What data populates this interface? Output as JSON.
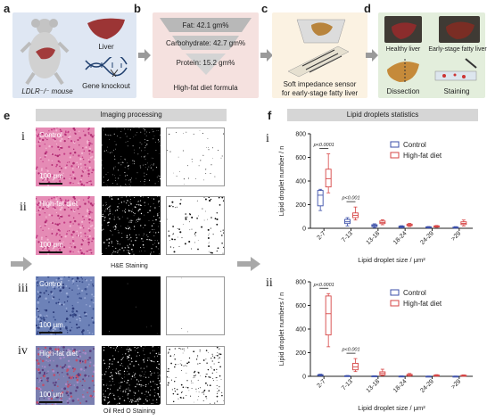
{
  "top": {
    "panels": [
      "a",
      "b",
      "c",
      "d"
    ],
    "a": {
      "mouse_label": "LDLR⁻/⁻ mouse",
      "liver": "Liver",
      "knockout": "Gene knockout"
    },
    "b": {
      "fat": "Fat: 42.1 gm%",
      "carb": "Carbohydrate: 42.7 gm%",
      "protein": "Protein: 15.2 gm%",
      "caption": "High-fat diet formula"
    },
    "c": {
      "caption_line1": "Soft impedance sensor",
      "caption_line2": "for early-stage fatty liver"
    },
    "d": {
      "healthy": "Healthy liver",
      "fatty": "Early-stage fatty liver",
      "dissection": "Dissection",
      "staining": "Staining"
    }
  },
  "e": {
    "label": "e",
    "header": "Imaging processing",
    "rows": [
      {
        "roman": "i",
        "text": "Control",
        "scale": "100 μm"
      },
      {
        "roman": "ii",
        "text": "High-fat diet",
        "scale": "100 μm"
      },
      {
        "roman": "iii",
        "text": "Control",
        "scale": "100 μm"
      },
      {
        "roman": "iv",
        "text": "High-fat diet",
        "scale": "100 μm"
      }
    ],
    "he_caption": "H&E Staining",
    "oro_caption": "Oil Red O Staining"
  },
  "f": {
    "label": "f",
    "header": "Lipid droplets statistics",
    "colors": {
      "control": "#3b4fa8",
      "hfd": "#d64545"
    }
  },
  "chart_data": [
    {
      "type": "box",
      "panel": "i",
      "categories": [
        "2-7",
        "7-13",
        "13-18",
        "18-24",
        "24-29",
        ">29"
      ],
      "xlabel": "Lipid droplet size / μm²",
      "ylabel": "Lipid droplet number / n",
      "ylim": [
        0,
        800
      ],
      "yticks": [
        0,
        200,
        400,
        600,
        800
      ],
      "legend": [
        "Control",
        "High-fat diet"
      ],
      "annotations": [
        {
          "category": "2-7",
          "text": "p<0.0001"
        },
        {
          "category": "7-13",
          "text": "p<0.001"
        }
      ],
      "series": [
        {
          "name": "Control",
          "boxes": [
            {
              "min": 150,
              "q1": 190,
              "median": 280,
              "q3": 320,
              "max": 330
            },
            {
              "min": 20,
              "q1": 40,
              "median": 55,
              "q3": 75,
              "max": 90
            },
            {
              "min": 5,
              "q1": 15,
              "median": 22,
              "q3": 30,
              "max": 38
            },
            {
              "min": 3,
              "q1": 8,
              "median": 12,
              "q3": 18,
              "max": 22
            },
            {
              "min": 2,
              "q1": 5,
              "median": 8,
              "q3": 12,
              "max": 15
            },
            {
              "min": 1,
              "q1": 3,
              "median": 6,
              "q3": 10,
              "max": 14
            }
          ]
        },
        {
          "name": "High-fat diet",
          "boxes": [
            {
              "min": 300,
              "q1": 350,
              "median": 420,
              "q3": 500,
              "max": 630
            },
            {
              "min": 70,
              "q1": 90,
              "median": 110,
              "q3": 130,
              "max": 180
            },
            {
              "min": 30,
              "q1": 40,
              "median": 50,
              "q3": 62,
              "max": 72
            },
            {
              "min": 15,
              "q1": 22,
              "median": 28,
              "q3": 35,
              "max": 42
            },
            {
              "min": 8,
              "q1": 12,
              "median": 16,
              "q3": 20,
              "max": 24
            },
            {
              "min": 20,
              "q1": 32,
              "median": 42,
              "q3": 55,
              "max": 70
            }
          ]
        }
      ]
    },
    {
      "type": "box",
      "panel": "ii",
      "categories": [
        "2-7",
        "7-13",
        "13-18",
        "18-24",
        "24-29",
        ">29"
      ],
      "xlabel": "Lipid droplet size / μm²",
      "ylabel": "Lipid droplet numbers / n",
      "ylim": [
        0,
        800
      ],
      "yticks": [
        0,
        200,
        400,
        600,
        800
      ],
      "legend": [
        "Control",
        "High-fat diet"
      ],
      "annotations": [
        {
          "category": "2-7",
          "text": "p<0.0001"
        },
        {
          "category": "7-13",
          "text": "p<0.001"
        }
      ],
      "series": [
        {
          "name": "Control",
          "boxes": [
            {
              "min": 3,
              "q1": 6,
              "median": 10,
              "q3": 14,
              "max": 18
            },
            {
              "min": 1,
              "q1": 2,
              "median": 3,
              "q3": 5,
              "max": 7
            },
            {
              "min": 0,
              "q1": 1,
              "median": 2,
              "q3": 3,
              "max": 4
            },
            {
              "min": 0,
              "q1": 0,
              "median": 1,
              "q3": 2,
              "max": 3
            },
            {
              "min": 0,
              "q1": 0,
              "median": 1,
              "q3": 1,
              "max": 2
            },
            {
              "min": 0,
              "q1": 0,
              "median": 1,
              "q3": 1,
              "max": 2
            }
          ]
        },
        {
          "name": "High-fat diet",
          "boxes": [
            {
              "min": 250,
              "q1": 350,
              "median": 530,
              "q3": 680,
              "max": 700
            },
            {
              "min": 40,
              "q1": 55,
              "median": 80,
              "q3": 110,
              "max": 150
            },
            {
              "min": 5,
              "q1": 12,
              "median": 25,
              "q3": 38,
              "max": 60
            },
            {
              "min": 2,
              "q1": 6,
              "median": 10,
              "q3": 16,
              "max": 24
            },
            {
              "min": 1,
              "q1": 3,
              "median": 6,
              "q3": 10,
              "max": 14
            },
            {
              "min": 1,
              "q1": 3,
              "median": 5,
              "q3": 9,
              "max": 12
            }
          ]
        }
      ]
    }
  ]
}
